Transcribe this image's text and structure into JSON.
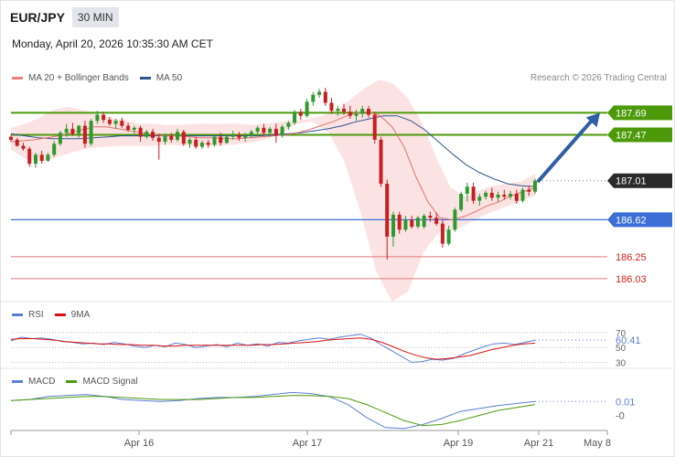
{
  "header": {
    "pair": "EUR/JPY",
    "timeframe": "30 MIN",
    "datetime": "Monday, April 20, 2026 10:35:30 AM CET"
  },
  "credit": "Research © 2026 Trading Central",
  "colors": {
    "up": "#2e9a2e",
    "down": "#c81e1e",
    "band": "#fcdede",
    "ma20": "#e57070",
    "ma50": "#2f5496",
    "resistance": "#4c9a0a",
    "support": "#3b6fd6",
    "minor": "#e07878",
    "rsi": "#5b7fd6",
    "signal": "#dd1111",
    "macd": "#5b7fd6",
    "macdsignal": "#4c9a0a",
    "current": "#2a2a2a",
    "arrow": "#2f5fa6"
  },
  "chart_data": [
    {
      "type": "candlestick",
      "legend": [
        "MA 20 + Bollinger Bands",
        "MA 50"
      ],
      "x_ticks": [
        "Apr 16",
        "Apr 17",
        "Apr 19",
        "Apr 21",
        "May 8"
      ],
      "ylim": [
        185.8,
        187.95
      ],
      "levels": [
        {
          "value": 187.69,
          "label": "187.69",
          "kind": "resistance"
        },
        {
          "value": 187.47,
          "label": "187.47",
          "kind": "resistance"
        },
        {
          "value": 187.01,
          "label": "187.01",
          "kind": "current"
        },
        {
          "value": 186.62,
          "label": "186.62",
          "kind": "support"
        },
        {
          "value": 186.25,
          "label": "186.25",
          "kind": "minor"
        },
        {
          "value": 186.03,
          "label": "186.03",
          "kind": "minor"
        }
      ],
      "forecast_target": 187.69,
      "ohlc": [
        [
          187.45,
          187.47,
          187.4,
          187.42
        ],
        [
          187.42,
          187.44,
          187.35,
          187.36
        ],
        [
          187.36,
          187.39,
          187.31,
          187.33
        ],
        [
          187.33,
          187.35,
          187.15,
          187.18
        ],
        [
          187.18,
          187.29,
          187.14,
          187.27
        ],
        [
          187.27,
          187.31,
          187.18,
          187.21
        ],
        [
          187.21,
          187.29,
          187.2,
          187.27
        ],
        [
          187.27,
          187.41,
          187.25,
          187.38
        ],
        [
          187.38,
          187.51,
          187.36,
          187.49
        ],
        [
          187.49,
          187.58,
          187.45,
          187.53
        ],
        [
          187.53,
          187.59,
          187.46,
          187.48
        ],
        [
          187.48,
          187.57,
          187.44,
          187.56
        ],
        [
          187.56,
          187.61,
          187.34,
          187.38
        ],
        [
          187.38,
          187.63,
          187.36,
          187.61
        ],
        [
          187.61,
          187.71,
          187.58,
          187.67
        ],
        [
          187.67,
          187.7,
          187.59,
          187.62
        ],
        [
          187.62,
          187.65,
          187.56,
          187.58
        ],
        [
          187.58,
          187.63,
          187.53,
          187.61
        ],
        [
          187.61,
          187.64,
          187.54,
          187.56
        ],
        [
          187.56,
          187.59,
          187.5,
          187.52
        ],
        [
          187.52,
          187.56,
          187.48,
          187.54
        ],
        [
          187.54,
          187.56,
          187.4,
          187.45
        ],
        [
          187.45,
          187.52,
          187.43,
          187.5
        ],
        [
          187.5,
          187.53,
          187.41,
          187.44
        ],
        [
          187.44,
          187.48,
          187.22,
          187.4
        ],
        [
          187.4,
          187.48,
          187.37,
          187.46
        ],
        [
          187.46,
          187.49,
          187.39,
          187.42
        ],
        [
          187.42,
          187.53,
          187.4,
          187.5
        ],
        [
          187.5,
          187.52,
          187.36,
          187.38
        ],
        [
          187.38,
          187.44,
          187.34,
          187.42
        ],
        [
          187.42,
          187.45,
          187.33,
          187.35
        ],
        [
          187.35,
          187.41,
          187.33,
          187.39
        ],
        [
          187.39,
          187.42,
          187.34,
          187.37
        ],
        [
          187.37,
          187.47,
          187.35,
          187.45
        ],
        [
          187.45,
          187.49,
          187.36,
          187.39
        ],
        [
          187.39,
          187.47,
          187.38,
          187.45
        ],
        [
          187.45,
          187.51,
          187.42,
          187.47
        ],
        [
          187.47,
          187.5,
          187.41,
          187.44
        ],
        [
          187.44,
          187.49,
          187.4,
          187.46
        ],
        [
          187.46,
          187.52,
          187.44,
          187.5
        ],
        [
          187.5,
          187.56,
          187.48,
          187.54
        ],
        [
          187.54,
          187.58,
          187.46,
          187.49
        ],
        [
          187.49,
          187.55,
          187.45,
          187.53
        ],
        [
          187.53,
          187.58,
          187.39,
          187.46
        ],
        [
          187.46,
          187.57,
          187.44,
          187.55
        ],
        [
          187.55,
          187.61,
          187.52,
          187.59
        ],
        [
          187.59,
          187.72,
          187.57,
          187.7
        ],
        [
          187.7,
          187.73,
          187.62,
          187.66
        ],
        [
          187.66,
          187.83,
          187.64,
          187.8
        ],
        [
          187.8,
          187.9,
          187.76,
          187.87
        ],
        [
          187.87,
          187.93,
          187.84,
          187.9
        ],
        [
          187.9,
          187.94,
          187.76,
          187.79
        ],
        [
          187.79,
          187.84,
          187.68,
          187.71
        ],
        [
          187.71,
          187.76,
          187.66,
          187.73
        ],
        [
          187.73,
          187.78,
          187.67,
          187.7
        ],
        [
          187.7,
          187.76,
          187.63,
          187.66
        ],
        [
          187.66,
          187.72,
          187.61,
          187.68
        ],
        [
          187.68,
          187.76,
          187.64,
          187.73
        ],
        [
          187.73,
          187.76,
          187.64,
          187.67
        ],
        [
          187.67,
          187.7,
          187.38,
          187.42
        ],
        [
          187.42,
          187.45,
          186.95,
          186.98
        ],
        [
          186.98,
          187.02,
          186.22,
          186.45
        ],
        [
          186.45,
          186.7,
          186.35,
          186.67
        ],
        [
          186.67,
          186.7,
          186.48,
          186.52
        ],
        [
          186.52,
          186.66,
          186.5,
          186.62
        ],
        [
          186.62,
          186.66,
          186.53,
          186.55
        ],
        [
          186.55,
          186.66,
          186.53,
          186.64
        ],
        [
          186.55,
          186.68,
          186.53,
          186.66
        ],
        [
          186.66,
          186.7,
          186.6,
          186.64
        ],
        [
          186.64,
          186.69,
          186.56,
          186.58
        ],
        [
          186.58,
          186.62,
          186.34,
          186.38
        ],
        [
          186.38,
          186.56,
          186.36,
          186.52
        ],
        [
          186.52,
          186.74,
          186.5,
          186.72
        ],
        [
          186.72,
          186.9,
          186.7,
          186.88
        ],
        [
          186.88,
          186.99,
          186.8,
          186.95
        ],
        [
          186.95,
          186.99,
          186.78,
          186.81
        ],
        [
          186.81,
          186.88,
          186.76,
          186.85
        ],
        [
          186.85,
          186.91,
          186.82,
          186.89
        ],
        [
          186.89,
          186.94,
          186.81,
          186.84
        ],
        [
          186.84,
          186.9,
          186.8,
          186.87
        ],
        [
          186.87,
          186.92,
          186.82,
          186.85
        ],
        [
          186.85,
          186.91,
          186.82,
          186.88
        ],
        [
          186.88,
          186.92,
          186.78,
          186.81
        ],
        [
          186.81,
          186.94,
          186.79,
          186.92
        ],
        [
          186.92,
          186.96,
          186.86,
          186.9
        ],
        [
          186.9,
          187.03,
          186.88,
          187.01
        ]
      ],
      "ma20": [
        187.4,
        187.41,
        187.42,
        187.44,
        187.46,
        187.49,
        187.52,
        187.55,
        187.55,
        187.53,
        187.51,
        187.49,
        187.47,
        187.46,
        187.46,
        187.45,
        187.44,
        187.44,
        187.43,
        187.43,
        187.44,
        187.45,
        187.46,
        187.47,
        187.49,
        187.52,
        187.56,
        187.6,
        187.65,
        187.69,
        187.7,
        187.66,
        187.55,
        187.35,
        187.05,
        186.8,
        186.64,
        186.62,
        186.65,
        186.7,
        186.76,
        186.8,
        186.86,
        186.9,
        186.94
      ],
      "ma50": [
        187.48,
        187.46,
        187.44,
        187.43,
        187.43,
        187.43,
        187.44,
        187.45,
        187.46,
        187.46,
        187.46,
        187.46,
        187.46,
        187.46,
        187.46,
        187.46,
        187.46,
        187.46,
        187.46,
        187.47,
        187.48,
        187.49,
        187.51,
        187.53,
        187.56,
        187.6,
        187.63,
        187.66,
        187.66,
        187.61,
        187.52,
        187.4,
        187.28,
        187.17,
        187.09,
        187.03,
        186.98,
        186.96,
        186.95
      ],
      "band_upper": [
        187.54,
        187.58,
        187.64,
        187.72,
        187.75,
        187.72,
        187.68,
        187.64,
        187.62,
        187.58,
        187.58,
        187.57,
        187.57,
        187.58,
        187.58,
        187.58,
        187.58,
        187.57,
        187.58,
        187.6,
        187.61,
        187.63,
        187.66,
        187.72,
        187.83,
        187.94,
        188.02,
        187.98,
        187.84,
        187.6,
        187.25,
        186.95,
        186.85,
        186.91,
        186.96,
        186.98,
        187.0,
        187.08
      ],
      "band_lower": [
        187.32,
        187.22,
        187.2,
        187.25,
        187.3,
        187.34,
        187.35,
        187.36,
        187.36,
        187.36,
        187.37,
        187.36,
        187.36,
        187.36,
        187.37,
        187.39,
        187.42,
        187.48,
        187.58,
        187.6,
        187.49,
        187.2,
        186.7,
        186.1,
        185.8,
        185.9,
        186.3,
        186.5,
        186.52,
        186.6,
        186.68,
        186.74,
        186.8,
        186.86
      ]
    },
    {
      "type": "line",
      "legend": [
        "RSI",
        "9MA"
      ],
      "ylim": [
        28,
        75
      ],
      "ticks": [
        {
          "value": 70,
          "label": "70"
        },
        {
          "value": 50,
          "label": "50"
        },
        {
          "value": 30,
          "label": "30"
        }
      ],
      "last_value": "60.41",
      "rsi": [
        59,
        64,
        62,
        63,
        61,
        58,
        57,
        55,
        56,
        54,
        57,
        55,
        52,
        50,
        53,
        51,
        56,
        54,
        50,
        52,
        54,
        51,
        56,
        53,
        55,
        52,
        57,
        56,
        59,
        61,
        63,
        61,
        64,
        66,
        68,
        63,
        54,
        46,
        38,
        30,
        31,
        34,
        33,
        35,
        41,
        46,
        51,
        55,
        56,
        54,
        57,
        60
      ],
      "signal": [
        61,
        62,
        62,
        61,
        60,
        58,
        57,
        56,
        55,
        55,
        54,
        54,
        53,
        53,
        52,
        52,
        53,
        53,
        53,
        53,
        53,
        53,
        53,
        54,
        54,
        55,
        56,
        57,
        58,
        60,
        61,
        62,
        63,
        61,
        57,
        51,
        45,
        40,
        36,
        34,
        35,
        37,
        39,
        43,
        47,
        50,
        53,
        55,
        56
      ]
    },
    {
      "type": "line",
      "legend": [
        "MACD",
        "MACD Signal"
      ],
      "ylim": [
        -0.27,
        0.14
      ],
      "ticks": [
        {
          "value": 0.0,
          "label": "-0"
        }
      ],
      "last_value": "0.01",
      "macd": [
        0.02,
        0.03,
        0.06,
        0.07,
        0.08,
        0.06,
        0.03,
        0.02,
        0.01,
        0.02,
        0.04,
        0.05,
        0.05,
        0.06,
        0.08,
        0.1,
        0.09,
        0.06,
        -0.02,
        -0.15,
        -0.25,
        -0.26,
        -0.22,
        -0.16,
        -0.09,
        -0.06,
        -0.03,
        -0.01,
        0.01
      ],
      "signal": [
        0.02,
        0.03,
        0.04,
        0.05,
        0.06,
        0.06,
        0.05,
        0.04,
        0.03,
        0.03,
        0.03,
        0.04,
        0.05,
        0.05,
        0.06,
        0.07,
        0.07,
        0.06,
        0.04,
        -0.02,
        -0.1,
        -0.18,
        -0.23,
        -0.22,
        -0.18,
        -0.13,
        -0.08,
        -0.05,
        -0.02
      ]
    }
  ]
}
